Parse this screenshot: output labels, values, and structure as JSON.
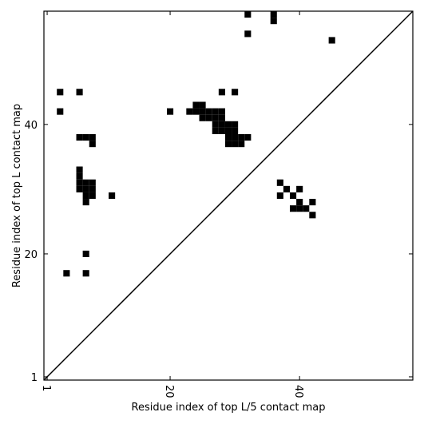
{
  "chart_data": {
    "type": "scatter",
    "marker": "square",
    "color": "#000000",
    "xlabel": "Residue index of top L/5 contact map",
    "ylabel": "Residue index of top L contact map",
    "xlim": [
      0.5,
      57.5
    ],
    "ylim": [
      0.5,
      57.5
    ],
    "xticks": [
      1,
      20,
      40
    ],
    "yticks": [
      1,
      20,
      40
    ],
    "diagonal": true,
    "x": [
      32,
      36,
      36,
      32,
      45,
      3,
      6,
      28,
      30,
      3,
      20,
      24,
      25,
      23,
      24,
      25,
      26,
      27,
      28,
      25,
      26,
      27,
      28,
      27,
      28,
      29,
      30,
      27,
      28,
      29,
      30,
      29,
      30,
      31,
      32,
      6,
      7,
      8,
      29,
      30,
      31,
      8,
      6,
      6,
      6,
      7,
      8,
      6,
      7,
      8,
      7,
      8,
      11,
      7,
      7,
      4,
      7,
      37,
      38,
      40,
      37,
      39,
      40,
      42,
      39,
      40,
      41,
      42
    ],
    "y": [
      57,
      57,
      56,
      54,
      53,
      45,
      45,
      45,
      45,
      42,
      42,
      43,
      43,
      42,
      42,
      42,
      42,
      42,
      42,
      41,
      41,
      41,
      41,
      40,
      40,
      40,
      40,
      39,
      39,
      39,
      39,
      38,
      38,
      38,
      38,
      38,
      38,
      38,
      37,
      37,
      37,
      37,
      33,
      32,
      31,
      31,
      31,
      30,
      30,
      30,
      29,
      29,
      29,
      28,
      20,
      17,
      17,
      31,
      30,
      30,
      29,
      29,
      28,
      28,
      27,
      27,
      27,
      26
    ]
  }
}
